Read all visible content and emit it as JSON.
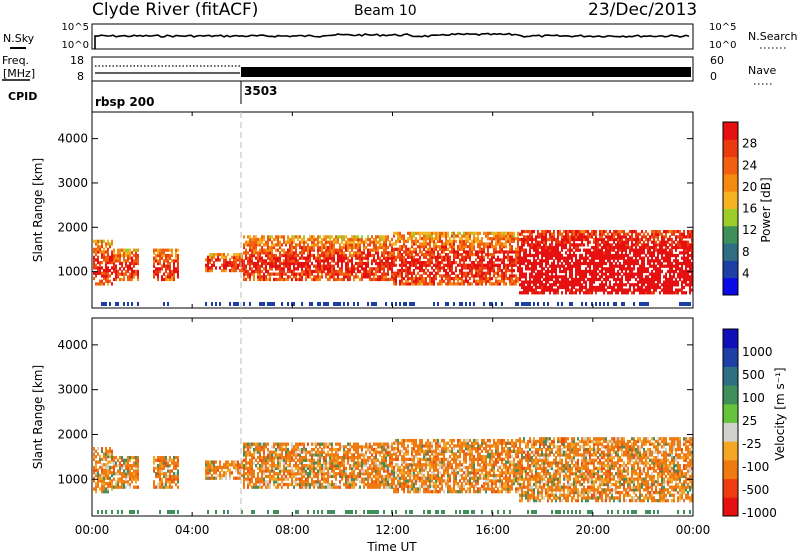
{
  "header": {
    "station": "Clyde River (fitACF)",
    "beam": "Beam 10",
    "date": "23/Dec/2013"
  },
  "noise_panel": {
    "left_label": "N.Sky",
    "right_label": "N.Search",
    "left_ticks": [
      "10^5",
      "10^0"
    ],
    "right_ticks": [
      "10^5",
      "10^0"
    ]
  },
  "freq_panel": {
    "left_label_line1": "Freq.",
    "left_label_line2": "[MHz]",
    "left_ticks": [
      "18",
      "8"
    ],
    "right_label": "Nave",
    "right_ticks": [
      "60",
      "0"
    ]
  },
  "cpid_panel": {
    "label": "CPID",
    "segments": [
      {
        "start_hour": 0,
        "name": "rbsp 200"
      },
      {
        "start_hour": 6,
        "name": "3503"
      }
    ]
  },
  "colors": {
    "scale": [
      "#1010e6",
      "#1e3fa6",
      "#2a5c8c",
      "#3f8f5a",
      "#67c23c",
      "#cfd2cc",
      "#f5a623",
      "#f07a12",
      "#ee5010",
      "#e61010"
    ]
  },
  "chart_data": [
    {
      "type": "heatmap",
      "name": "Power",
      "ylabel": "Slant Range [km]",
      "ylim": [
        180,
        4600
      ],
      "yticks": [
        "1000",
        "2000",
        "3000",
        "4000"
      ],
      "colorbar_label": "Power [dB]",
      "colorbar_ticks": [
        "4",
        "8",
        "12",
        "16",
        "20",
        "24",
        "28"
      ],
      "clim": [
        0,
        32
      ]
    },
    {
      "type": "heatmap",
      "name": "Velocity",
      "ylabel": "Slant Range [km]",
      "ylim": [
        180,
        4600
      ],
      "yticks": [
        "1000",
        "2000",
        "3000",
        "4000"
      ],
      "colorbar_label": "Velocity [m s⁻¹]",
      "colorbar_ticks": [
        "1000",
        "500",
        "100",
        "25",
        "-25",
        "-100",
        "-500",
        "-1000"
      ]
    }
  ],
  "time_axis": {
    "label": "Time UT",
    "xlim_hours": [
      0,
      24
    ],
    "ticks": [
      "00:00",
      "04:00",
      "08:00",
      "12:00",
      "16:00",
      "20:00",
      "00:00"
    ]
  }
}
